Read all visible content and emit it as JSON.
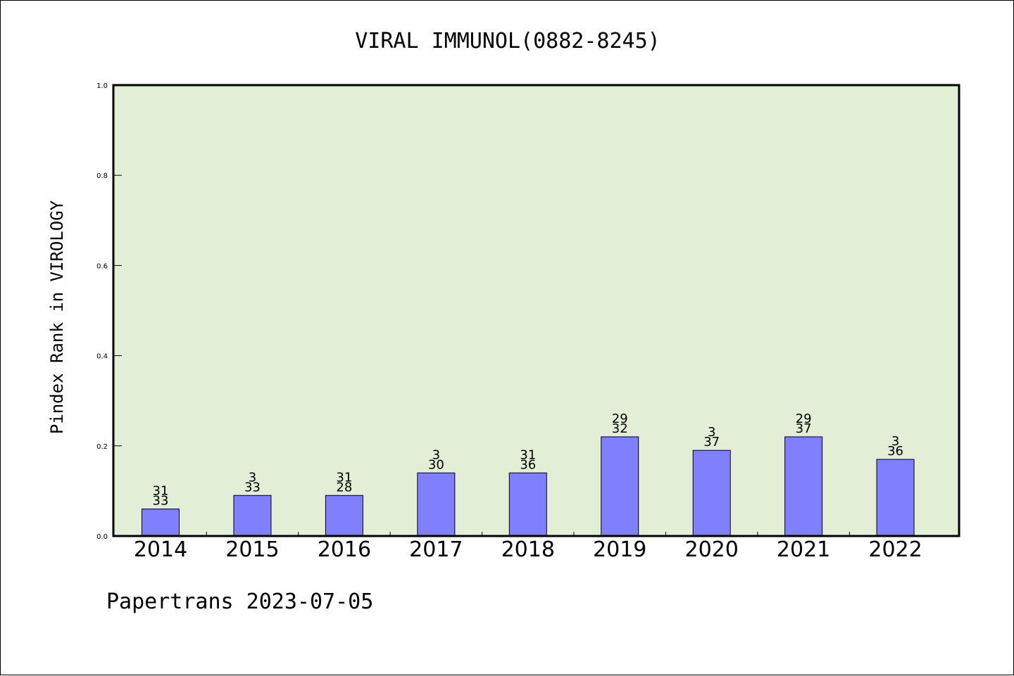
{
  "colors": {
    "plot_background": "#e2efd6",
    "bar_fill": "#8080ff",
    "bar_stroke": "#000000",
    "axis": "#000000"
  },
  "chart_data": {
    "type": "bar",
    "title": "VIRAL IMMUNOL(0882-8245)",
    "xlabel": "",
    "ylabel": "Pindex Rank in VIROLOGY",
    "ylim": [
      0,
      1.0
    ],
    "yticks": [
      "0.0",
      "0.2",
      "0.4",
      "0.6",
      "0.8",
      "1.0"
    ],
    "categories": [
      "2014",
      "2015",
      "2016",
      "2017",
      "2018",
      "2019",
      "2020",
      "2021",
      "2022"
    ],
    "values": [
      0.06,
      0.09,
      0.09,
      0.14,
      0.14,
      0.22,
      0.19,
      0.22,
      0.17
    ],
    "label_top": [
      "31",
      "3",
      "31",
      "3",
      "31",
      "29",
      "3",
      "29",
      "3"
    ],
    "label_bottom": [
      "33",
      "33",
      "28",
      "30",
      "36",
      "32",
      "37",
      "37",
      "36"
    ],
    "grid": false,
    "footer": "Papertrans 2023-07-05"
  }
}
